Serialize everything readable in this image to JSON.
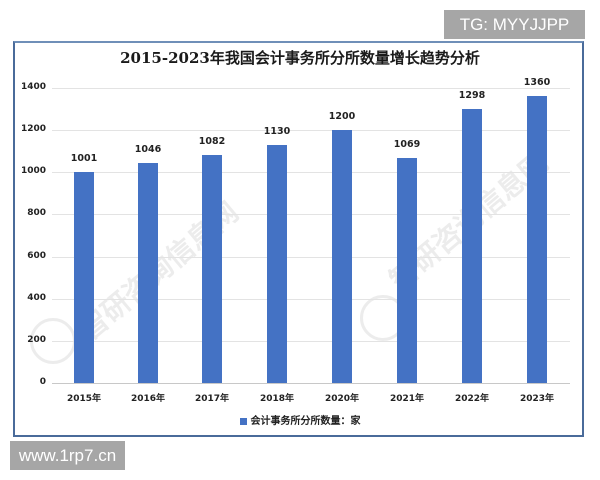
{
  "badges": {
    "top_right": "TG: MYYJJPP",
    "bottom_left": "www.1rp7.cn"
  },
  "watermark": {
    "text": "智研咨询信息网"
  },
  "chart_data": {
    "type": "bar",
    "title": "2015-2023年我国会计事务所分所数量增长趋势分析",
    "categories": [
      "2015年",
      "2016年",
      "2017年",
      "2018年",
      "2020年",
      "2021年",
      "2022年",
      "2023年"
    ],
    "series": [
      {
        "name": "会计事务所分所数量：家",
        "color": "#4472c4",
        "values": [
          1001,
          1046,
          1082,
          1130,
          1200,
          1069,
          1298,
          1360
        ]
      }
    ],
    "value_labels": [
      "1001",
      "1046",
      "1082",
      "1130",
      "1200",
      "1069",
      "1298",
      "1360"
    ],
    "xlabel": "",
    "ylabel": "",
    "ylim": [
      0,
      1400
    ],
    "yticks": [
      "0",
      "200",
      "400",
      "600",
      "800",
      "1000",
      "1200",
      "1400"
    ],
    "grid": true,
    "legend_position": "bottom"
  }
}
